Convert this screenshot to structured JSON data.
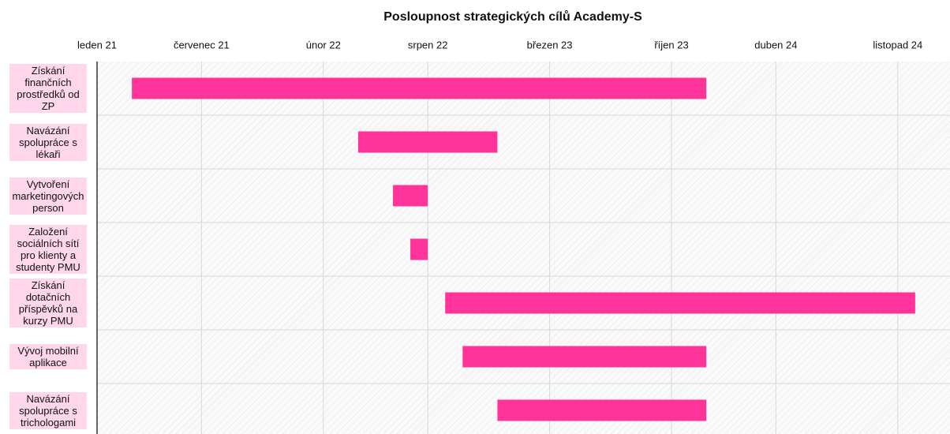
{
  "chart_data": {
    "type": "gantt",
    "title": "Posloupnost strategických cílů Academy-S",
    "categories": [
      "Získání finančních prostředků od ZP",
      "Navázání spolupráce s lékaři",
      "Vytvoření marketingových person",
      "Založení sociálních sítí pro klienty a studenty PMU",
      "Získání dotačních příspěvků na kurzy PMU",
      "Vývoj mobilní aplikace",
      "Navázání spolupráce s trichologami"
    ],
    "start": [
      "2021-03",
      "2022-04",
      "2022-06",
      "2022-07",
      "2022-09",
      "2022-10",
      "2022-12"
    ],
    "end": [
      "2023-12",
      "2022-12",
      "2022-08",
      "2022-08",
      "2024-12",
      "2023-12",
      "2023-12"
    ],
    "color": "#ff3399",
    "label_color": "#ffd6ea",
    "xlim": [
      "2021-01",
      "2025-02"
    ],
    "xticks": [
      {
        "value": "2021-01",
        "label": "leden 21"
      },
      {
        "value": "2021-07",
        "label": "červenec 21"
      },
      {
        "value": "2022-02",
        "label": "únor 22"
      },
      {
        "value": "2022-08",
        "label": "srpen 22"
      },
      {
        "value": "2023-03",
        "label": "březen 23"
      },
      {
        "value": "2023-10",
        "label": "říjen 23"
      },
      {
        "value": "2024-04",
        "label": "duben 24"
      },
      {
        "value": "2024-11",
        "label": "listopad 24"
      }
    ],
    "grid": true
  }
}
